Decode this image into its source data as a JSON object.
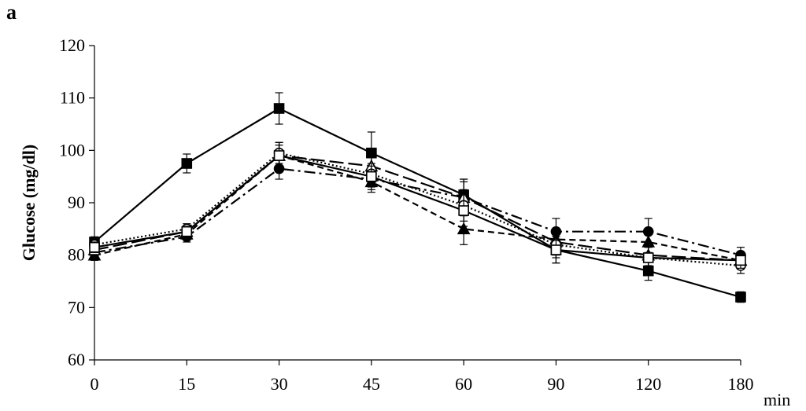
{
  "chart_data": {
    "type": "line",
    "panel_label": "a",
    "ylabel": "Glucose (mg/dl)",
    "xunit": "min",
    "categories": [
      "0",
      "15",
      "30",
      "45",
      "60",
      "90",
      "120",
      "180"
    ],
    "ylim": [
      60,
      120
    ],
    "yticks": [
      "60",
      "70",
      "80",
      "90",
      "100",
      "110",
      "120"
    ],
    "grid": false,
    "legend": "none",
    "series": [
      {
        "marker": "filled-square",
        "line": "solid",
        "values": [
          82.5,
          97.5,
          108,
          99.5,
          91.5,
          81,
          77,
          72
        ],
        "err": [
          1,
          1.8,
          3,
          4,
          3,
          2.5,
          1.8,
          1
        ]
      },
      {
        "marker": "filled-circle",
        "line": "dash-dot",
        "values": [
          80.5,
          83.5,
          96.5,
          94.5,
          91,
          84.5,
          84.5,
          80
        ],
        "err": [
          1,
          1,
          2,
          2,
          3,
          2.5,
          2.5,
          1.5
        ]
      },
      {
        "marker": "filled-triangle",
        "line": "short-dash",
        "values": [
          80,
          84,
          99,
          94,
          85,
          83,
          82.5,
          79
        ],
        "err": [
          1,
          1,
          2.5,
          2,
          3,
          2,
          2,
          1.5
        ]
      },
      {
        "marker": "open-triangle",
        "line": "long-dash",
        "values": [
          81,
          84.5,
          99,
          97,
          91,
          82.5,
          80,
          79
        ],
        "err": [
          1,
          1,
          2.5,
          2.5,
          3.5,
          2.5,
          2,
          1.5
        ]
      },
      {
        "marker": "open-circle",
        "line": "dotted",
        "values": [
          82,
          85,
          99.5,
          95.5,
          89.5,
          82,
          79.5,
          78
        ],
        "err": [
          1,
          1,
          2,
          2,
          3,
          2.5,
          2,
          1.5
        ]
      },
      {
        "marker": "open-square",
        "line": "solid",
        "values": [
          81.5,
          84.5,
          99,
          95,
          88.5,
          81,
          79.5,
          79
        ],
        "err": [
          1,
          1,
          2,
          2,
          3,
          2.5,
          2,
          1.5
        ]
      }
    ]
  }
}
